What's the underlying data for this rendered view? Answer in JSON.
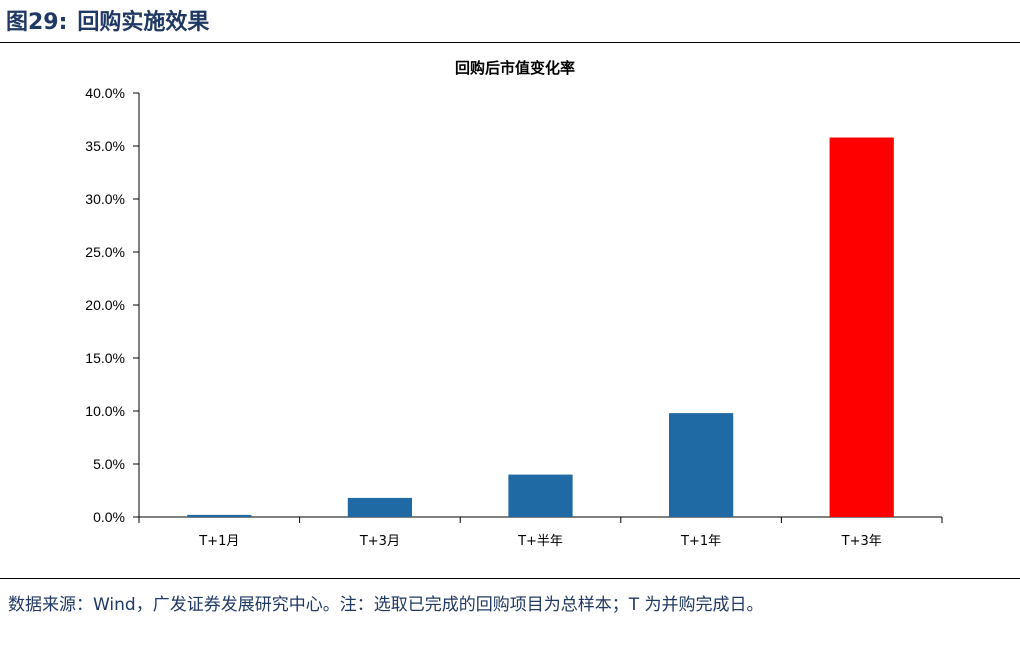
{
  "figure": {
    "label": "图29:",
    "title": "回购实施效果"
  },
  "chart_data": {
    "type": "bar",
    "title": "回购后市值变化率",
    "categories": [
      "T+1月",
      "T+3月",
      "T+半年",
      "T+1年",
      "T+3年"
    ],
    "values": [
      0.2,
      1.8,
      4.0,
      9.8,
      35.8
    ],
    "value_unit": "%",
    "ylim": [
      0,
      40
    ],
    "yticks": [
      "0.0%",
      "5.0%",
      "10.0%",
      "15.0%",
      "20.0%",
      "25.0%",
      "30.0%",
      "35.0%",
      "40.0%"
    ],
    "colors": [
      "#1f6aa5",
      "#1f6aa5",
      "#1f6aa5",
      "#1f6aa5",
      "#ff0000"
    ],
    "grid": false,
    "legend": "none"
  },
  "footer": {
    "source_note": "数据来源：Wind，广发证券发展研究中心。注：选取已完成的回购项目为总样本；T 为并购完成日。"
  }
}
